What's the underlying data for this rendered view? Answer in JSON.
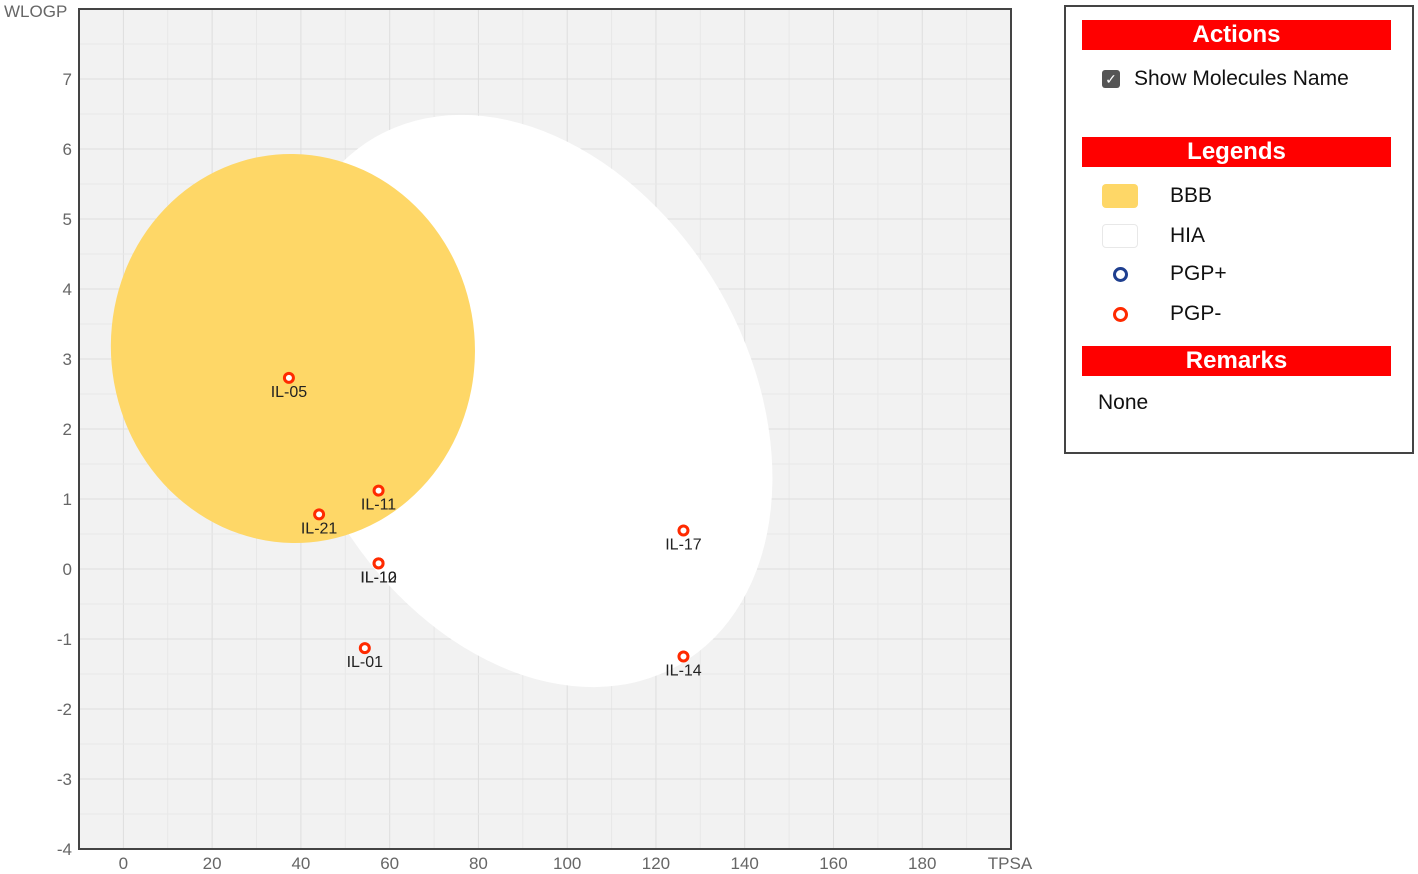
{
  "chart_data": {
    "type": "scatter",
    "xlabel": "TPSA",
    "ylabel": "WLOGP",
    "xlim": [
      -10,
      200
    ],
    "ylim": [
      -4,
      8
    ],
    "x_ticks": [
      0,
      20,
      40,
      60,
      80,
      100,
      120,
      140,
      160,
      180
    ],
    "y_ticks": [
      -4,
      -3,
      -2,
      -1,
      0,
      1,
      2,
      3,
      4,
      5,
      6,
      7
    ],
    "grid": true,
    "regions": [
      {
        "name": "HIA",
        "shape": "ellipse",
        "cx": 91,
        "cy": 2.4,
        "rx": 50,
        "ry": 4.35,
        "rotate": -30,
        "color": "#ffffff"
      },
      {
        "name": "BBB",
        "shape": "ellipse",
        "cx": 38.2,
        "cy": 3.15,
        "rx": 41,
        "ry": 2.78,
        "rotate": -5,
        "color": "#fed767"
      }
    ],
    "points": [
      {
        "label": "IL-05",
        "x": 37.3,
        "y": 2.73,
        "pgp": "-"
      },
      {
        "label": "IL-11",
        "x": 57.5,
        "y": 1.12,
        "pgp": "-"
      },
      {
        "label": "IL-21",
        "x": 44.1,
        "y": 0.78,
        "pgp": "-"
      },
      {
        "label": "IL-10",
        "x": 57.5,
        "y": 0.08,
        "pgp": "-"
      },
      {
        "label": "IL-12",
        "x": 57.5,
        "y": 0.08,
        "pgp": "-"
      },
      {
        "label": "IL-17",
        "x": 126.2,
        "y": 0.55,
        "pgp": "-"
      },
      {
        "label": "IL-01",
        "x": 54.4,
        "y": -1.13,
        "pgp": "-"
      },
      {
        "label": "IL-14",
        "x": 126.2,
        "y": -1.25,
        "pgp": "-"
      }
    ]
  },
  "panel": {
    "actions_title": "Actions",
    "show_names_label": "Show Molecules Name",
    "show_names_checked": true,
    "legends_title": "Legends",
    "legend": [
      {
        "label": "BBB",
        "kind": "fill",
        "color": "#fed767"
      },
      {
        "label": "HIA",
        "kind": "fill",
        "color": "#ffffff"
      },
      {
        "label": "PGP+",
        "kind": "ring",
        "color": "#1f3f8f"
      },
      {
        "label": "PGP-",
        "kind": "ring",
        "color": "#ff2a00"
      }
    ],
    "remarks_title": "Remarks",
    "remarks_text": "None",
    "header_color": "#ff0000"
  }
}
